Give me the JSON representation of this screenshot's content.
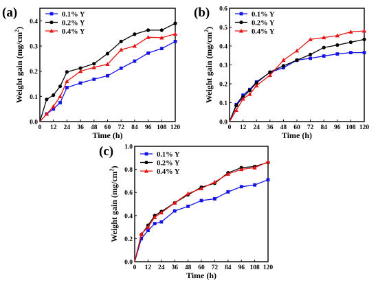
{
  "chart_data": [
    {
      "type": "line",
      "panel_label": "(a)",
      "xlabel": "Time (h)",
      "ylabel_main": "Weight gain (mg/cm",
      "ylabel_sup": "2",
      "ylabel_end": ")",
      "x": [
        0,
        6,
        12,
        18,
        24,
        36,
        48,
        60,
        72,
        84,
        96,
        108,
        120
      ],
      "xlim": [
        0,
        120
      ],
      "ylim": [
        0,
        0.45
      ],
      "xticks": [
        "0",
        "12",
        "24",
        "36",
        "48",
        "60",
        "72",
        "84",
        "96",
        "108",
        "120"
      ],
      "yticks": [
        "0.0",
        "0.1",
        "0.2",
        "0.3",
        "0.4"
      ],
      "legend_position": "top-left",
      "series": [
        {
          "name": "0.1% Y",
          "color": "#1414e6",
          "marker": "square",
          "values": [
            0,
            0.03,
            0.05,
            0.075,
            0.135,
            0.153,
            0.168,
            0.182,
            0.212,
            0.24,
            0.272,
            0.29,
            0.318
          ]
        },
        {
          "name": "0.2% Y",
          "color": "#000000",
          "marker": "circle",
          "values": [
            0,
            0.088,
            0.105,
            0.14,
            0.197,
            0.212,
            0.23,
            0.27,
            0.318,
            0.347,
            0.363,
            0.363,
            0.39
          ]
        },
        {
          "name": "0.4% Y",
          "color": "#e61414",
          "marker": "triangle",
          "values": [
            0,
            0.03,
            0.06,
            0.1,
            0.16,
            0.2,
            0.215,
            0.228,
            0.285,
            0.3,
            0.335,
            0.333,
            0.348
          ]
        }
      ]
    },
    {
      "type": "line",
      "panel_label": "(b)",
      "xlabel": "Time (h)",
      "ylabel_main": "Weight gain (mg/cm",
      "ylabel_sup": "2",
      "ylabel_end": ")",
      "x": [
        0,
        6,
        12,
        18,
        24,
        36,
        48,
        60,
        72,
        84,
        96,
        108,
        120
      ],
      "xlim": [
        0,
        120
      ],
      "ylim": [
        0,
        0.6
      ],
      "xticks": [
        "0",
        "12",
        "24",
        "36",
        "48",
        "60",
        "72",
        "84",
        "96",
        "108",
        "120"
      ],
      "yticks": [
        "0.0",
        "0.1",
        "0.2",
        "0.3",
        "0.4",
        "0.5",
        "0.6"
      ],
      "legend_position": "top-left",
      "series": [
        {
          "name": "0.1% Y",
          "color": "#1414e6",
          "marker": "square",
          "values": [
            0,
            0.09,
            0.14,
            0.17,
            0.21,
            0.26,
            0.285,
            0.325,
            0.335,
            0.347,
            0.358,
            0.365,
            0.365
          ]
        },
        {
          "name": "0.2% Y",
          "color": "#000000",
          "marker": "circle",
          "values": [
            0,
            0.085,
            0.13,
            0.165,
            0.205,
            0.262,
            0.295,
            0.325,
            0.355,
            0.392,
            0.405,
            0.42,
            0.435
          ]
        },
        {
          "name": "0.4% Y",
          "color": "#e61414",
          "marker": "triangle",
          "values": [
            0,
            0.06,
            0.12,
            0.145,
            0.19,
            0.245,
            0.325,
            0.375,
            0.435,
            0.445,
            0.455,
            0.475,
            0.48
          ]
        }
      ]
    },
    {
      "type": "line",
      "panel_label": "(c)",
      "xlabel": "Time (h)",
      "ylabel_main": "Weight gain (mg/cm",
      "ylabel_sup": "2",
      "ylabel_end": ")",
      "x": [
        0,
        6,
        12,
        18,
        24,
        36,
        48,
        60,
        72,
        84,
        96,
        108,
        120
      ],
      "xlim": [
        0,
        120
      ],
      "ylim": [
        0,
        1.0
      ],
      "xticks": [
        "0",
        "12",
        "24",
        "36",
        "48",
        "60",
        "72",
        "84",
        "96",
        "108",
        "120"
      ],
      "yticks": [
        "0.0",
        "0.2",
        "0.4",
        "0.6",
        "0.8",
        "1.0"
      ],
      "legend_position": "top-left",
      "series": [
        {
          "name": "0.1% Y",
          "color": "#1414e6",
          "marker": "square",
          "values": [
            0,
            0.2,
            0.27,
            0.33,
            0.345,
            0.44,
            0.48,
            0.53,
            0.545,
            0.605,
            0.65,
            0.665,
            0.71
          ]
        },
        {
          "name": "0.2% Y",
          "color": "#000000",
          "marker": "circle",
          "values": [
            0,
            0.235,
            0.315,
            0.4,
            0.435,
            0.51,
            0.58,
            0.645,
            0.68,
            0.77,
            0.815,
            0.825,
            0.86
          ]
        },
        {
          "name": "0.4% Y",
          "color": "#e61414",
          "marker": "triangle",
          "values": [
            0,
            0.24,
            0.3,
            0.385,
            0.425,
            0.51,
            0.59,
            0.635,
            0.69,
            0.76,
            0.8,
            0.815,
            0.865
          ]
        }
      ]
    }
  ]
}
